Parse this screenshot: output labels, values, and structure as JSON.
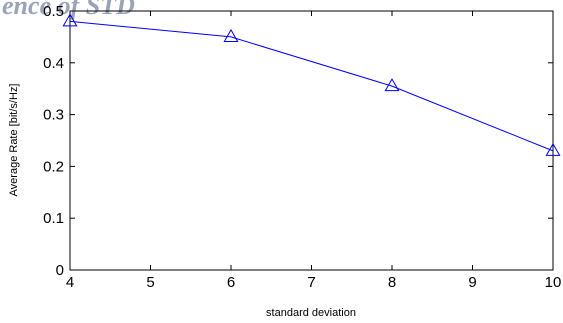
{
  "chart_data": {
    "type": "line",
    "title_fragment": "ence of STD",
    "xlabel": "standard deviation",
    "ylabel": "Average Rate [bit/s/Hz]",
    "xlim": [
      4,
      10
    ],
    "ylim": [
      0,
      0.5
    ],
    "x_ticks": [
      "4",
      "5",
      "6",
      "7",
      "8",
      "9",
      "10"
    ],
    "y_ticks": [
      "0",
      "0.1",
      "0.2",
      "0.3",
      "0.4",
      "0.5"
    ],
    "grid": false,
    "series": [
      {
        "marker": "triangle",
        "color": "#0000ff",
        "x": [
          4,
          6,
          8,
          10
        ],
        "y": [
          0.48,
          0.45,
          0.355,
          0.23
        ]
      }
    ]
  }
}
